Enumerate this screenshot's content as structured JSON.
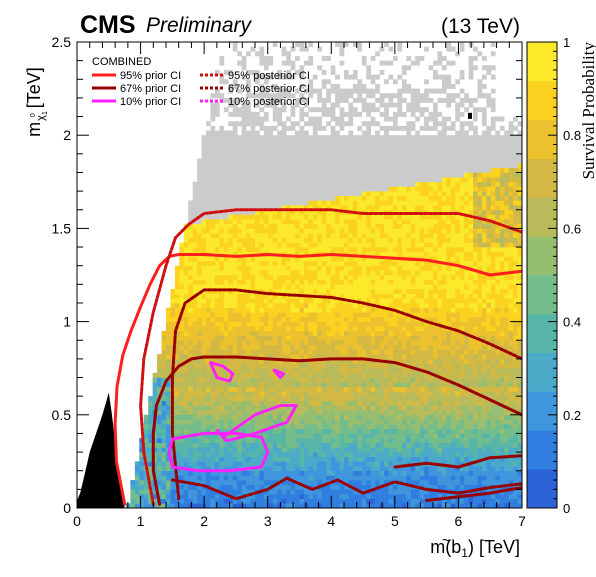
{
  "header": {
    "experiment": "CMS",
    "status": "Preliminary",
    "energy": "(13 TeV)"
  },
  "chart_data": {
    "type": "heatmap",
    "title": "",
    "xlabel_main": "m(",
    "xlabel_symbol": "b",
    "xlabel_sub": "1",
    "xlabel_tail": ") [TeV]",
    "ylabel_main": "m",
    "ylabel_sub": "χ",
    "ylabel_subsub": "1",
    "ylabel_sup": "0",
    "ylabel_tail": "[TeV]",
    "zlabel": "Survival Probability",
    "xlim": [
      0,
      7
    ],
    "ylim": [
      0,
      2.5
    ],
    "zlim": [
      0,
      1
    ],
    "x_ticks": [
      "0",
      "1",
      "2",
      "3",
      "4",
      "5",
      "6",
      "7"
    ],
    "y_ticks": [
      "0",
      "0.5",
      "1",
      "1.5",
      "2",
      "2.5"
    ],
    "z_ticks": [
      "0",
      "0.2",
      "0.4",
      "0.6",
      "0.8",
      "1"
    ],
    "legend": {
      "placement": "top-left",
      "header": "COMBINED",
      "entries": [
        {
          "label": "95%  prior CI",
          "color": "#ff1f1f",
          "style": "solid"
        },
        {
          "label": "95% posterior CI",
          "color": "#d01010",
          "style": "dotted"
        },
        {
          "label": "67%  prior CI",
          "color": "#990000",
          "style": "solid"
        },
        {
          "label": "67% posterior CI",
          "color": "#990000",
          "style": "dotted"
        },
        {
          "label": "10%  prior CI",
          "color": "#ff20ff",
          "style": "solid"
        },
        {
          "label": "10% posterior CI",
          "color": "#ff20ff",
          "style": "dotted"
        }
      ]
    },
    "palette": [
      "#2c63d6",
      "#2f7ee0",
      "#3f96dc",
      "#4aaac8",
      "#57b6a8",
      "#74bd8a",
      "#96be70",
      "#b9bb5a",
      "#d3b944",
      "#ecc12e",
      "#fbd21f",
      "#fbe92a"
    ],
    "contours": [
      {
        "name": "95%  prior CI",
        "color": "#ff1f1f",
        "style": "solid",
        "x": [
          0.75,
          0.62,
          0.6,
          0.63,
          0.72,
          0.85,
          1.0,
          1.15,
          1.3,
          1.45,
          1.6,
          2,
          2.5,
          3,
          3.5,
          4,
          4.5,
          5,
          5.5,
          6,
          6.5,
          7
        ],
        "y": [
          0.02,
          0.25,
          0.45,
          0.65,
          0.82,
          0.95,
          1.08,
          1.2,
          1.3,
          1.35,
          1.36,
          1.36,
          1.35,
          1.36,
          1.35,
          1.36,
          1.35,
          1.34,
          1.33,
          1.3,
          1.25,
          1.27
        ]
      },
      {
        "name": "95% posterior CI",
        "color": "#d01010",
        "style": "dotted",
        "x": [
          1.2,
          1.05,
          1.0,
          1.05,
          1.2,
          1.4,
          1.55,
          1.75,
          2,
          2.5,
          3,
          3.5,
          4,
          4.5,
          5,
          5.5,
          6,
          6.5,
          7
        ],
        "y": [
          0.02,
          0.3,
          0.55,
          0.8,
          1.05,
          1.3,
          1.45,
          1.52,
          1.58,
          1.6,
          1.6,
          1.6,
          1.6,
          1.58,
          1.58,
          1.58,
          1.58,
          1.54,
          1.48
        ]
      },
      {
        "name": "67%  prior CI",
        "color": "#990000",
        "style": "solid",
        "x": [
          1.3,
          1.2,
          1.2,
          1.25,
          1.4,
          1.6,
          1.8,
          2,
          2.5,
          3,
          3.5,
          4,
          4.5,
          5,
          5.5,
          6,
          6.5,
          7
        ],
        "y": [
          0.02,
          0.2,
          0.4,
          0.55,
          0.68,
          0.76,
          0.8,
          0.81,
          0.81,
          0.8,
          0.79,
          0.8,
          0.8,
          0.78,
          0.73,
          0.66,
          0.58,
          0.5
        ]
      },
      {
        "name": "67% posterior CI",
        "color": "#990000",
        "style": "dotted",
        "x": [
          1.6,
          1.5,
          1.5,
          1.55,
          1.7,
          2,
          2.5,
          3,
          3.5,
          4,
          4.5,
          5,
          5.5,
          6,
          6.5,
          7
        ],
        "y": [
          0.05,
          0.4,
          0.7,
          0.95,
          1.1,
          1.17,
          1.17,
          1.15,
          1.14,
          1.13,
          1.1,
          1.06,
          1.0,
          0.95,
          0.88,
          0.8
        ]
      },
      {
        "name": "67% posterior CI (lower)",
        "color": "#990000",
        "style": "dotted",
        "x": [
          1.5,
          2,
          2.5,
          3,
          3.3,
          3.7,
          4.1,
          4.5,
          5,
          5.5,
          6,
          6.5,
          7
        ],
        "y": [
          0.15,
          0.12,
          0.05,
          0.1,
          0.16,
          0.1,
          0.15,
          0.08,
          0.14,
          0.1,
          0.08,
          0.11,
          0.13
        ]
      },
      {
        "name": "67% prior CI (lower)",
        "color": "#990000",
        "style": "solid",
        "x": [
          5,
          5.5,
          6,
          6.5,
          7
        ],
        "y": [
          0.22,
          0.24,
          0.22,
          0.27,
          0.28
        ]
      },
      {
        "name": "67% prior CI (bottom)",
        "color": "#990000",
        "style": "solid",
        "x": [
          5.5,
          6,
          6.5,
          7
        ],
        "y": [
          0.04,
          0.06,
          0.08,
          0.11
        ]
      },
      {
        "name": "10%  prior CI",
        "color": "#ff20ff",
        "style": "solid",
        "x": [
          1.5,
          1.9,
          2.4,
          2.9,
          3.0,
          2.9,
          2.5,
          2.0,
          1.5,
          1.45,
          1.5
        ],
        "y": [
          0.22,
          0.2,
          0.2,
          0.22,
          0.3,
          0.38,
          0.4,
          0.4,
          0.37,
          0.3,
          0.22
        ]
      },
      {
        "name": "10% posterior CI",
        "color": "#ff20ff",
        "style": "dotted",
        "x": [
          2.3,
          2.8,
          3.2,
          3.45,
          3.3,
          2.8,
          2.35,
          2.2,
          2.3
        ],
        "y": [
          0.38,
          0.5,
          0.55,
          0.55,
          0.46,
          0.4,
          0.36,
          0.42,
          0.38
        ]
      },
      {
        "name": "10% posterior CI (upper)",
        "color": "#ff20ff",
        "style": "dotted",
        "x": [
          2.1,
          2.3,
          2.45,
          2.4,
          2.2,
          2.1
        ],
        "y": [
          0.78,
          0.76,
          0.72,
          0.68,
          0.7,
          0.78
        ]
      },
      {
        "name": "10% posterior CI (small)",
        "color": "#ff20ff",
        "style": "dotted",
        "x": [
          3.1,
          3.25,
          3.2,
          3.1
        ],
        "y": [
          0.74,
          0.72,
          0.7,
          0.74
        ]
      }
    ]
  }
}
